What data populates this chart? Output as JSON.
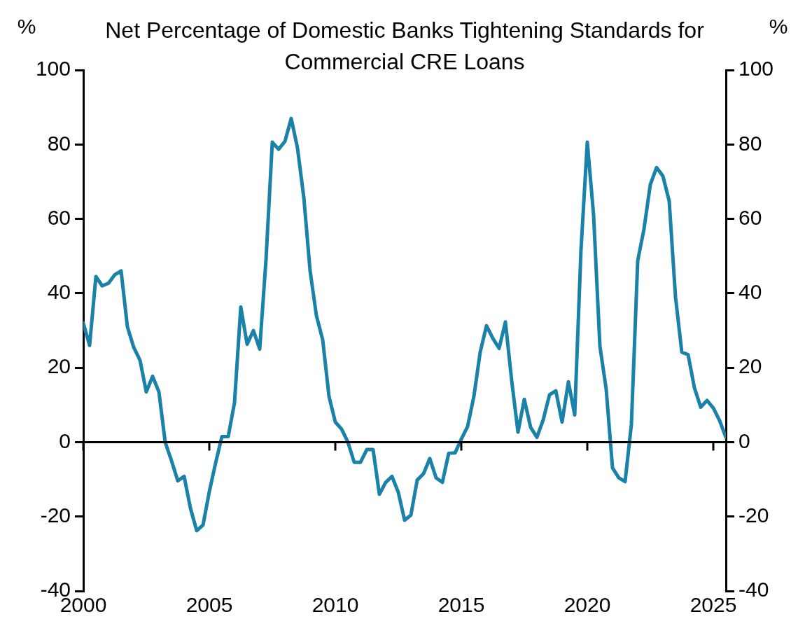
{
  "chart_data": {
    "type": "line",
    "title": "Net Percentage of Domestic Banks Tightening Standards for Commercial CRE Loans",
    "ylabel": "%",
    "y2label": "%",
    "x": [
      2000,
      2000.25,
      2000.5,
      2000.75,
      2001,
      2001.25,
      2001.5,
      2001.75,
      2002,
      2002.25,
      2002.5,
      2002.75,
      2003,
      2003.25,
      2003.5,
      2003.75,
      2004,
      2004.25,
      2004.5,
      2004.75,
      2005,
      2005.25,
      2005.5,
      2005.75,
      2006,
      2006.25,
      2006.5,
      2006.75,
      2007,
      2007.25,
      2007.5,
      2007.75,
      2008,
      2008.25,
      2008.5,
      2008.75,
      2009,
      2009.25,
      2009.5,
      2009.75,
      2010,
      2010.25,
      2010.5,
      2010.75,
      2011,
      2011.25,
      2011.5,
      2011.75,
      2012,
      2012.25,
      2012.5,
      2012.75,
      2013,
      2013.25,
      2013.5,
      2013.75,
      2014,
      2014.25,
      2014.5,
      2014.75,
      2015,
      2015.25,
      2015.5,
      2015.75,
      2016,
      2016.25,
      2016.5,
      2016.75,
      2017,
      2017.25,
      2017.5,
      2017.75,
      2018,
      2018.25,
      2018.5,
      2018.75,
      2019,
      2019.25,
      2019.5,
      2019.75,
      2020,
      2020.25,
      2020.5,
      2020.75,
      2021,
      2021.25,
      2021.5,
      2021.75,
      2022,
      2022.25,
      2022.5,
      2022.75,
      2023,
      2023.25,
      2023.5,
      2023.75,
      2024,
      2024.25,
      2024.5,
      2024.75,
      2025,
      2025.25,
      2025.5
    ],
    "series": [
      {
        "color": "#1a81a8",
        "values": [
          32,
          26,
          44.5,
          42,
          42.7,
          45,
          46,
          31,
          25.5,
          22,
          13.5,
          17.7,
          13.5,
          0,
          -5,
          -10.4,
          -9.2,
          -17.7,
          -23.8,
          -22.3,
          -13.3,
          -5.6,
          1.5,
          1.5,
          10.6,
          36.3,
          26.3,
          30,
          25,
          49,
          80.6,
          78.7,
          80.8,
          87,
          79,
          65.8,
          46,
          34,
          27.5,
          12.3,
          5.4,
          3.5,
          0,
          -5.4,
          -5.4,
          -2,
          -2,
          -14,
          -10.8,
          -9.2,
          -13.5,
          -21,
          -19.6,
          -10.2,
          -8.5,
          -4.4,
          -9.6,
          -10.8,
          -3,
          -2.9,
          0.8,
          4.2,
          12.3,
          24.2,
          31.3,
          27.9,
          25.2,
          32.3,
          16.5,
          2.7,
          11.5,
          4,
          1.3,
          6,
          12.7,
          13.8,
          5.4,
          16.2,
          7.3,
          51.7,
          80.6,
          61,
          25.8,
          14.2,
          -6.9,
          -9.6,
          -10.6,
          4.8,
          48.7,
          57.3,
          69.2,
          73.8,
          71.5,
          64.8,
          39,
          24.2,
          23.5,
          14.6,
          9.4,
          11.2,
          9.2,
          5.8,
          1.3
        ]
      }
    ],
    "xlim": [
      2000,
      2025.5
    ],
    "xticks": [
      2000,
      2005,
      2010,
      2015,
      2020,
      2025
    ],
    "ylim": [
      -40,
      100
    ],
    "yticks": [
      -40,
      -20,
      0,
      20,
      40,
      60,
      80,
      100
    ],
    "y2lim": [
      -40,
      100
    ],
    "y2ticks": [
      -40,
      -20,
      0,
      20,
      40,
      60,
      80,
      100
    ],
    "ref_lines": [
      {
        "axis": "y",
        "value": 0,
        "color": "#000000"
      }
    ],
    "grid": false,
    "legend": false,
    "marker": "none",
    "line_style": "solid"
  }
}
